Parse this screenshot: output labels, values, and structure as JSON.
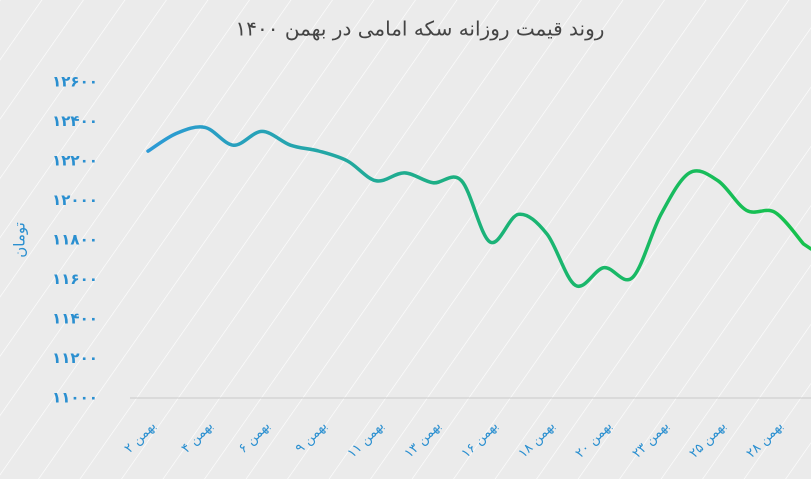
{
  "chart_data": {
    "type": "line",
    "title": "روند قیمت روزانه سکه امامی در بهمن ۱۴۰۰",
    "y_label": "تومان",
    "categories": [
      "۲ بهمن",
      null,
      "۴ بهمن",
      null,
      "۶ بهمن",
      null,
      "۹ بهمن",
      null,
      "۱۱ بهمن",
      null,
      "۱۳ بهمن",
      null,
      "۱۶ بهمن",
      null,
      "۱۸ بهمن",
      null,
      "۲۰ بهمن",
      null,
      "۲۳ بهمن",
      null,
      "۲۵ بهمن",
      null,
      "۲۸ بهمن",
      null
    ],
    "series": [
      {
        "color": [
          "#2c9ad6",
          "#1bb27a",
          "#16c24c"
        ],
        "values": [
          12250,
          12340,
          12370,
          12280,
          12350,
          12280,
          12250,
          12200,
          12100,
          12140,
          12090,
          12100,
          11790,
          11930,
          11830,
          11570,
          11660,
          11610,
          11930,
          12140,
          12100,
          11950,
          11940,
          11780
        ]
      }
    ],
    "ylim": [
      11000,
      12600
    ],
    "yticks": [
      {
        "value": 11000,
        "label": "۱۱۰۰۰"
      },
      {
        "value": 11200,
        "label": "۱۱۲۰۰"
      },
      {
        "value": 11400,
        "label": "۱۱۴۰۰"
      },
      {
        "value": 11600,
        "label": "۱۱۶۰۰"
      },
      {
        "value": 11800,
        "label": "۱۱۸۰۰"
      },
      {
        "value": 12000,
        "label": "۱۲۰۰۰"
      },
      {
        "value": 12200,
        "label": "۱۲۲۰۰"
      },
      {
        "value": 12400,
        "label": "۱۲۴۰۰"
      },
      {
        "value": 12600,
        "label": "۱۲۶۰۰"
      }
    ],
    "grid": false
  }
}
